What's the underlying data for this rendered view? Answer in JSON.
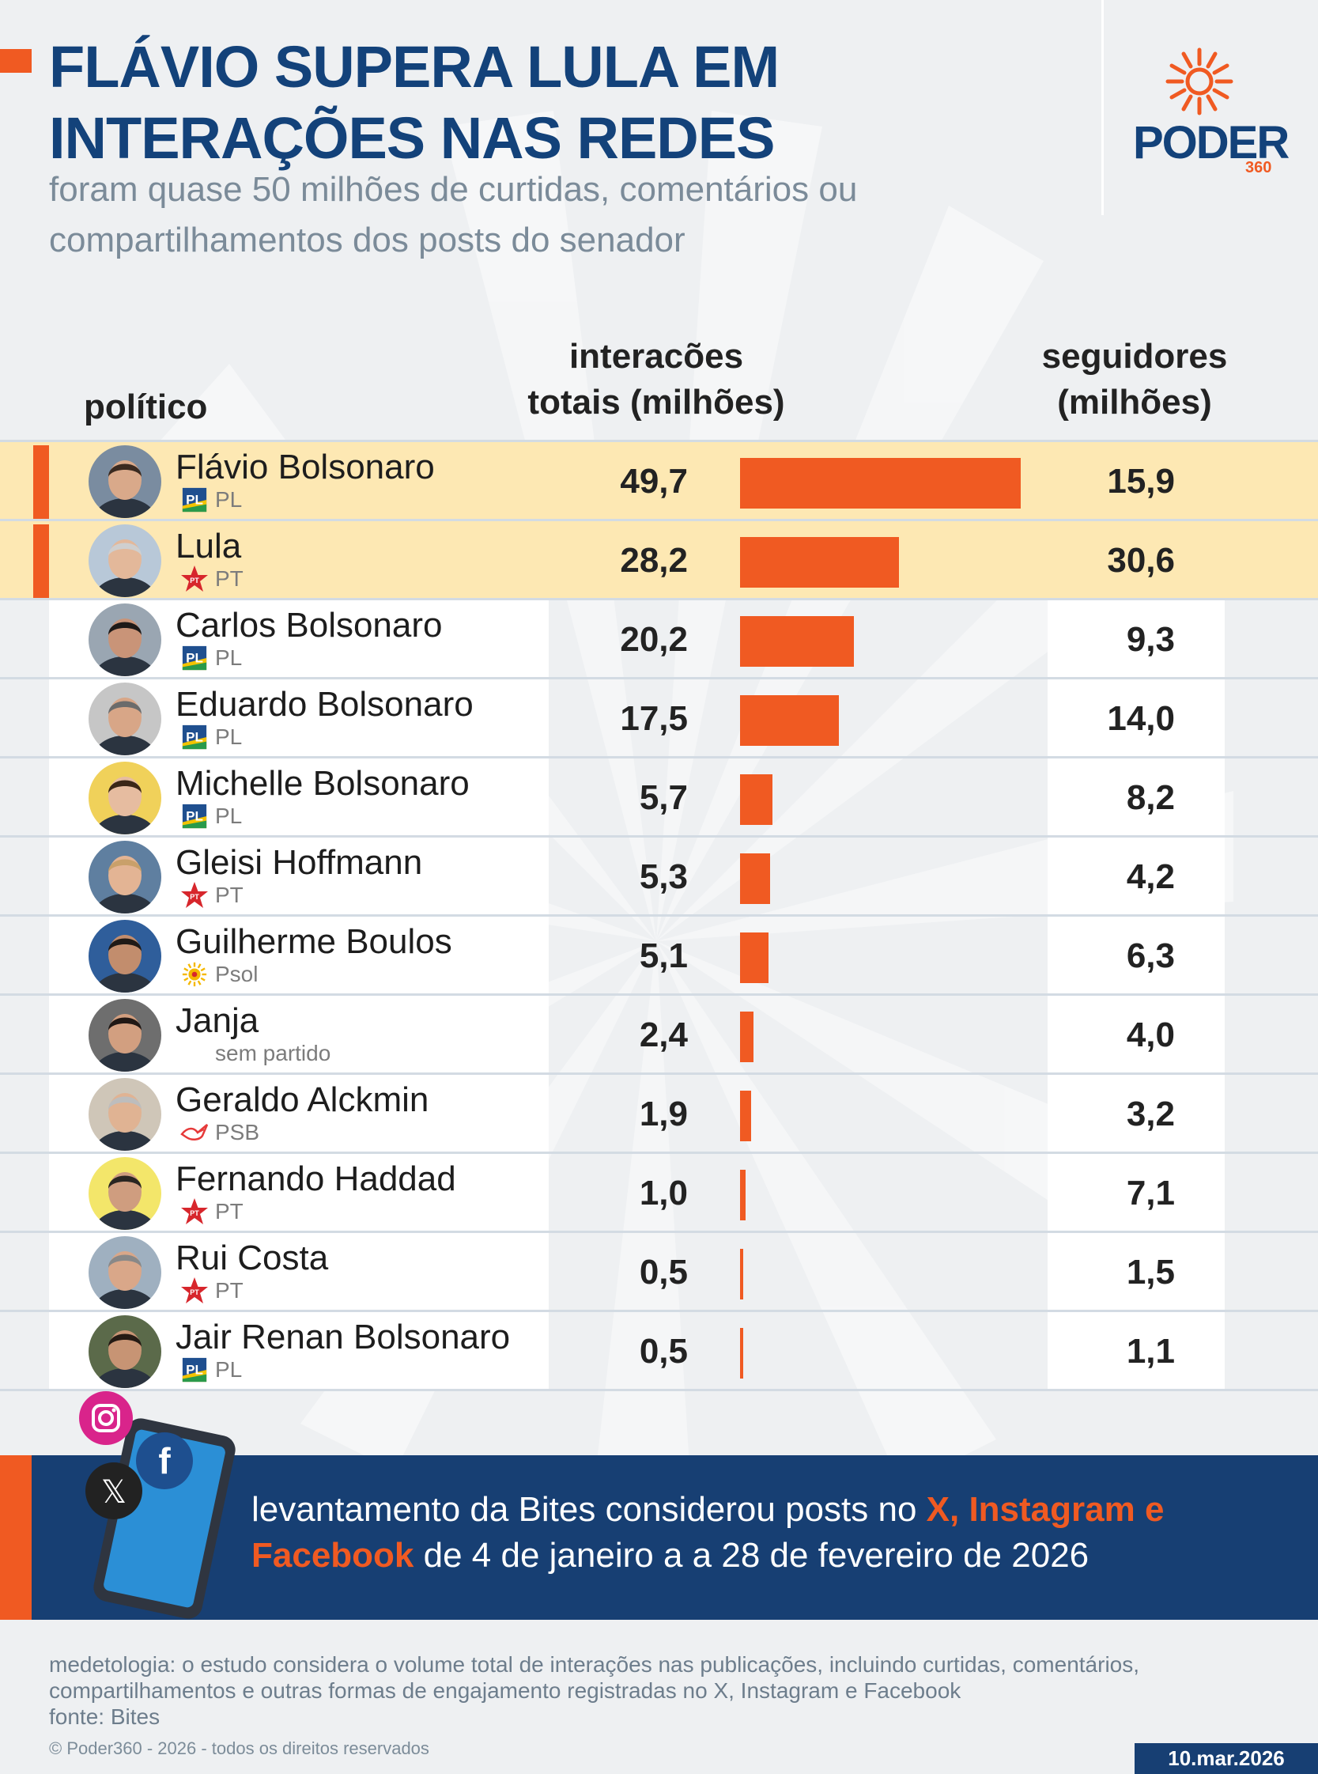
{
  "header": {
    "title": "FLÁVIO SUPERA LULA EM INTERAÇÕES NAS REDES",
    "subtitle": "foram quase 50 milhões de curtidas, comentários ou compartilhamentos dos posts do senador"
  },
  "logo": {
    "name": "PODER",
    "sub": "360"
  },
  "columns": {
    "politico": "político",
    "interacoes_l1": "interacões",
    "interacoes_l2": "totais (milhões)",
    "seguidores_l1": "seguidores",
    "seguidores_l2": "(milhões)"
  },
  "chart_data": {
    "type": "bar",
    "orientation": "horizontal",
    "categories": [
      "Flávio Bolsonaro",
      "Lula",
      "Carlos Bolsonaro",
      "Eduardo Bolsonaro",
      "Michelle Bolsonaro",
      "Gleisi Hoffmann",
      "Guilherme Boulos",
      "Janja",
      "Geraldo Alckmin",
      "Fernando Haddad",
      "Rui Costa",
      "Jair Renan Bolsonaro"
    ],
    "parties": [
      "PL",
      "PT",
      "PL",
      "PL",
      "PL",
      "PT",
      "Psol",
      "sem partido",
      "PSB",
      "PT",
      "PT",
      "PL"
    ],
    "highlighted": [
      true,
      true,
      false,
      false,
      false,
      false,
      false,
      false,
      false,
      false,
      false,
      false
    ],
    "series": [
      {
        "name": "interacões totais (milhões)",
        "values": [
          49.7,
          28.2,
          20.2,
          17.5,
          5.7,
          5.3,
          5.1,
          2.4,
          1.9,
          1.0,
          0.5,
          0.5
        ],
        "labels": [
          "49,7",
          "28,2",
          "20,2",
          "17,5",
          "5,7",
          "5,3",
          "5,1",
          "2,4",
          "1,9",
          "1,0",
          "0,5",
          "0,5"
        ]
      },
      {
        "name": "seguidores (milhões)",
        "values": [
          15.9,
          30.6,
          9.3,
          14.0,
          8.2,
          4.2,
          6.3,
          4.0,
          3.2,
          7.1,
          1.5,
          1.1
        ],
        "labels": [
          "15,9",
          "30,6",
          "9,3",
          "14,0",
          "8,2",
          "4,2",
          "6,3",
          "4,0",
          "3,2",
          "7,1",
          "1,5",
          "1,1"
        ]
      }
    ],
    "xlim": [
      0,
      49.7
    ]
  },
  "colors": {
    "accent": "#f05a22",
    "navy": "#173f73",
    "title_blue": "#13427a",
    "highlight_row": "#fde8b3",
    "pl_blue": "#1f4f8f",
    "pt_red": "#d7262c",
    "psb_red": "#e63a3a",
    "psol_yellow": "#f5b800"
  },
  "icons": {
    "PL": "pl-logo-icon",
    "PT": "pt-star-icon",
    "Psol": "psol-sun-icon",
    "PSB": "psb-dove-icon",
    "sem partido": ""
  },
  "banner": {
    "text_1": "levantamento da Bites considerou posts no ",
    "text_hl": "X, Instagram e Facebook",
    "text_2": " de 4 de janeiro a a 28 de fevereiro de 2026"
  },
  "footer": {
    "methodology": "medetologia: o estudo considera o volume total de interações nas publicações, incluindo curtidas, comentários, compartilhamentos e outras formas de engajamento registradas no X, Instagram e Facebook",
    "source": "fonte: Bites",
    "copyright": "© Poder360 - 2026 - todos os direitos reservados",
    "date": "10.mar.2026"
  }
}
